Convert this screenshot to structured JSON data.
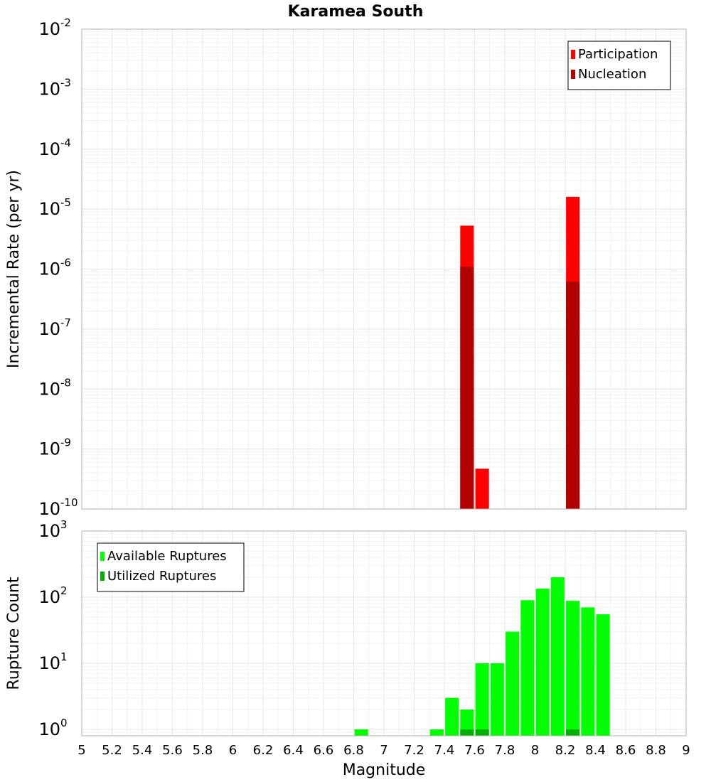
{
  "chart_data": [
    {
      "type": "bar",
      "title": "Karamea South",
      "xlabel": "",
      "ylabel": "Incremental Rate (per yr)",
      "xlim": [
        5,
        9
      ],
      "ylim": [
        1e-10,
        0.01
      ],
      "yscale": "log",
      "grid": true,
      "bar_width": 0.09,
      "yticks": [
        {
          "base": "10",
          "exp": "-10"
        },
        {
          "base": "10",
          "exp": "-9"
        },
        {
          "base": "10",
          "exp": "-8"
        },
        {
          "base": "10",
          "exp": "-7"
        },
        {
          "base": "10",
          "exp": "-6"
        },
        {
          "base": "10",
          "exp": "-5"
        },
        {
          "base": "10",
          "exp": "-4"
        },
        {
          "base": "10",
          "exp": "-3"
        },
        {
          "base": "10",
          "exp": "-2"
        }
      ],
      "legend": {
        "position": "top-right"
      },
      "series": [
        {
          "name": "Participation",
          "color": "#ff0000",
          "points": [
            {
              "x": 7.55,
              "y": 5.3e-06
            },
            {
              "x": 7.65,
              "y": 4.7e-10
            },
            {
              "x": 8.25,
              "y": 1.6e-05
            }
          ]
        },
        {
          "name": "Nucleation",
          "color": "#b00000",
          "points": [
            {
              "x": 7.55,
              "y": 1.1e-06
            },
            {
              "x": 8.25,
              "y": 6.2e-07
            }
          ]
        }
      ]
    },
    {
      "type": "bar",
      "title": "",
      "xlabel": "Magnitude",
      "ylabel": "Rupture Count",
      "xlim": [
        5,
        9
      ],
      "ylim": [
        0.8,
        1000
      ],
      "yscale": "log",
      "grid": true,
      "bar_width": 0.09,
      "xticks": [
        "5",
        "5.2",
        "5.4",
        "5.6",
        "5.8",
        "6",
        "6.2",
        "6.4",
        "6.6",
        "6.8",
        "7",
        "7.2",
        "7.4",
        "7.6",
        "7.8",
        "8",
        "8.2",
        "8.4",
        "8.6",
        "8.8",
        "9"
      ],
      "yticks": [
        {
          "base": "10",
          "exp": "0"
        },
        {
          "base": "10",
          "exp": "1"
        },
        {
          "base": "10",
          "exp": "2"
        },
        {
          "base": "10",
          "exp": "3"
        }
      ],
      "legend": {
        "position": "top-left"
      },
      "series": [
        {
          "name": "Available Ruptures",
          "color": "#00ff00",
          "points": [
            {
              "x": 6.85,
              "y": 1
            },
            {
              "x": 7.35,
              "y": 1
            },
            {
              "x": 7.45,
              "y": 3
            },
            {
              "x": 7.55,
              "y": 2
            },
            {
              "x": 7.65,
              "y": 10
            },
            {
              "x": 7.75,
              "y": 10
            },
            {
              "x": 7.85,
              "y": 30
            },
            {
              "x": 7.95,
              "y": 90
            },
            {
              "x": 8.05,
              "y": 135
            },
            {
              "x": 8.15,
              "y": 200
            },
            {
              "x": 8.25,
              "y": 88
            },
            {
              "x": 8.35,
              "y": 70
            },
            {
              "x": 8.45,
              "y": 55
            }
          ]
        },
        {
          "name": "Utilized Ruptures",
          "color": "#00b000",
          "points": [
            {
              "x": 7.55,
              "y": 1
            },
            {
              "x": 7.65,
              "y": 1
            },
            {
              "x": 8.25,
              "y": 1
            }
          ]
        }
      ]
    }
  ]
}
